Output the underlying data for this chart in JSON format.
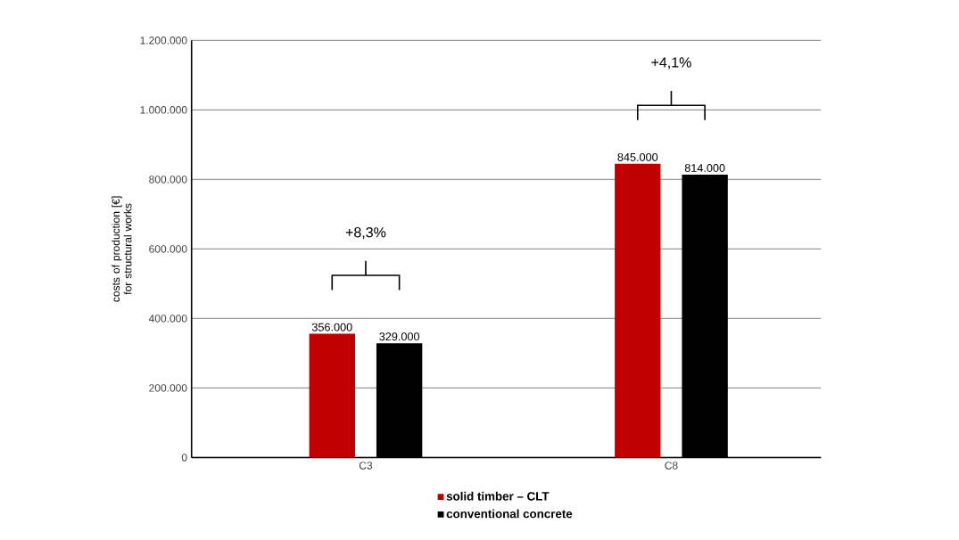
{
  "chart_data": {
    "type": "bar",
    "ylabel": "costs of production [€] for structural works",
    "categories": [
      "C3",
      "C8"
    ],
    "series": [
      {
        "name": "solid timber – CLT",
        "color": "#c00000",
        "values": [
          356000,
          845000
        ],
        "value_labels": [
          "356.000",
          "845.000"
        ]
      },
      {
        "name": "conventional concrete",
        "color": "#000000",
        "values": [
          329000,
          814000
        ],
        "value_labels": [
          "329.000",
          "814.000"
        ]
      }
    ],
    "ylim": [
      0,
      1200000
    ],
    "yticks": [
      {
        "value": 0,
        "label": "0"
      },
      {
        "value": 200000,
        "label": "200.000"
      },
      {
        "value": 400000,
        "label": "400.000"
      },
      {
        "value": 600000,
        "label": "600.000"
      },
      {
        "value": 800000,
        "label": "800.000"
      },
      {
        "value": 1000000,
        "label": "1.000.000"
      },
      {
        "value": 1200000,
        "label": "1.200.000"
      }
    ],
    "grid": "y",
    "legend": "bottom",
    "marker": "square",
    "annotations": [
      "+8,3%",
      "+4,1%"
    ]
  }
}
